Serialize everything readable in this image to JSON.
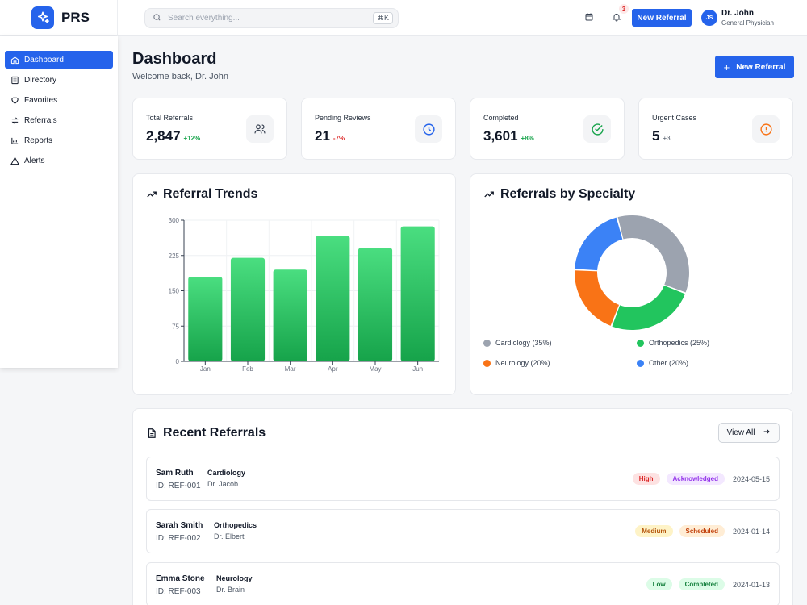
{
  "app": {
    "name": "PRS"
  },
  "search": {
    "placeholder": "Search everything...",
    "shortcut": "⌘K"
  },
  "header": {
    "notification_count": "3",
    "new_referral_label": "New Referral",
    "user": {
      "initials": "JS",
      "name": "Dr. John",
      "role": "General Physician"
    }
  },
  "sidebar": {
    "items": [
      {
        "label": "Dashboard",
        "icon": "home-icon"
      },
      {
        "label": "Directory",
        "icon": "building-icon"
      },
      {
        "label": "Favorites",
        "icon": "heart-icon"
      },
      {
        "label": "Referrals",
        "icon": "arrows-icon"
      },
      {
        "label": "Reports",
        "icon": "bar-chart-icon"
      },
      {
        "label": "Alerts",
        "icon": "warning-icon"
      }
    ]
  },
  "page": {
    "title": "Dashboard",
    "subtitle": "Welcome back, Dr. John",
    "new_referral_label": "New Referral"
  },
  "stats": [
    {
      "label": "Total Referrals",
      "value": "2,847",
      "delta": "+12%",
      "delta_color": "#16a34a",
      "icon": "users-icon"
    },
    {
      "label": "Pending Reviews",
      "value": "21",
      "delta": "-7%",
      "delta_color": "#dc2626",
      "icon": "clock-icon"
    },
    {
      "label": "Completed",
      "value": "3,601",
      "delta": "+8%",
      "delta_color": "#16a34a",
      "icon": "check-circle-icon"
    },
    {
      "label": "Urgent Cases",
      "value": "5",
      "delta": "+3",
      "delta_color": "#4b5563",
      "icon": "alert-circle-icon"
    }
  ],
  "trends": {
    "title": "Referral Trends"
  },
  "specialty": {
    "title": "Referrals by Specialty"
  },
  "chart_data": [
    {
      "type": "bar",
      "title": "Referral Trends",
      "categories": [
        "Jan",
        "Feb",
        "Mar",
        "Apr",
        "May",
        "Jun"
      ],
      "values": [
        180,
        220,
        195,
        267,
        241,
        287
      ],
      "yticks": [
        "0",
        "75",
        "150",
        "225",
        "300"
      ],
      "ylim": [
        0,
        300
      ],
      "grid": true,
      "color": "#22c55e"
    },
    {
      "type": "pie",
      "title": "Referrals by Specialty",
      "labels": [
        "Cardiology (35%)",
        "Orthopedics (25%)",
        "Neurology (20%)",
        "Other (20%)"
      ],
      "values": [
        35,
        25,
        20,
        20
      ],
      "colors": [
        "#9ca3af",
        "#22c55e",
        "#f97316",
        "#3b82f6"
      ]
    }
  ],
  "recent": {
    "title": "Recent Referrals",
    "view_all_label": "View All",
    "rows": [
      {
        "name": "Sam Ruth",
        "id": "ID: REF-001",
        "specialty": "Cardiology",
        "doctor": "Dr. Jacob",
        "priority": "High",
        "status": "Acknowledged",
        "date": "2024-05-15"
      },
      {
        "name": "Sarah Smith",
        "id": "ID: REF-002",
        "specialty": "Orthopedics",
        "doctor": "Dr. Elbert",
        "priority": "Medium",
        "status": "Scheduled",
        "date": "2024-01-14"
      },
      {
        "name": "Emma Stone",
        "id": "ID: REF-003",
        "specialty": "Neurology",
        "doctor": "Dr. Brain",
        "priority": "Low",
        "status": "Completed",
        "date": "2024-01-13"
      }
    ]
  },
  "pill_colors": {
    "High": [
      "#fde2e2",
      "#dc2626"
    ],
    "Medium": [
      "#fef3c7",
      "#b45309"
    ],
    "Low": [
      "#dcfce7",
      "#15803d"
    ],
    "Acknowledged": [
      "#f3e8ff",
      "#9333ea"
    ],
    "Scheduled": [
      "#ffedd5",
      "#c2410c"
    ],
    "Completed": [
      "#dcfce7",
      "#15803d"
    ]
  }
}
